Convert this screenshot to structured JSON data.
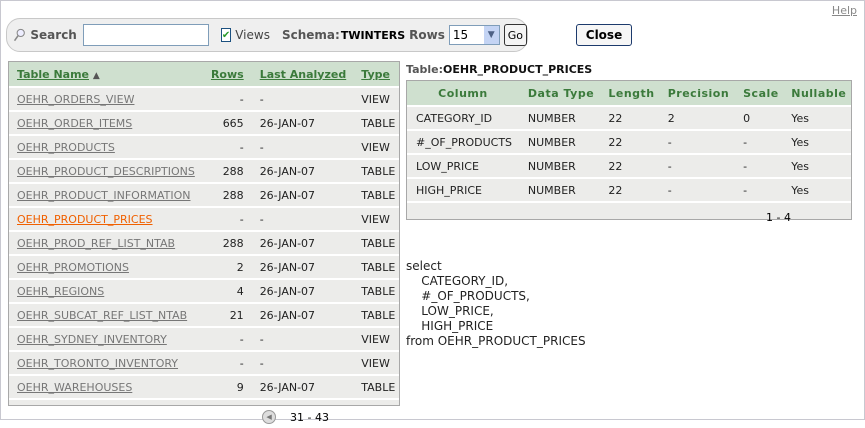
{
  "help_label": "Help",
  "toolbar": {
    "search_label": "Search",
    "search_value": "",
    "views_label": "Views",
    "views_checked": true,
    "schema_label": "Schema:",
    "schema_value": "TWINTERS",
    "rows_label": "Rows",
    "rows_value": "15",
    "go_label": "Go"
  },
  "close_label": "Close",
  "tables": {
    "headers": {
      "name": "Table Name",
      "sort_indicator": "▲",
      "rows": "Rows",
      "last_analyzed": "Last Analyzed",
      "type": "Type"
    },
    "rows": [
      {
        "name": "OEHR_ORDERS_VIEW",
        "rows": "-",
        "last": "-",
        "type": "VIEW"
      },
      {
        "name": "OEHR_ORDER_ITEMS",
        "rows": "665",
        "last": "26-JAN-07",
        "type": "TABLE"
      },
      {
        "name": "OEHR_PRODUCTS",
        "rows": "-",
        "last": "-",
        "type": "VIEW"
      },
      {
        "name": "OEHR_PRODUCT_DESCRIPTIONS",
        "rows": "288",
        "last": "26-JAN-07",
        "type": "TABLE"
      },
      {
        "name": "OEHR_PRODUCT_INFORMATION",
        "rows": "288",
        "last": "26-JAN-07",
        "type": "TABLE"
      },
      {
        "name": "OEHR_PRODUCT_PRICES",
        "rows": "-",
        "last": "-",
        "type": "VIEW"
      },
      {
        "name": "OEHR_PROD_REF_LIST_NTAB",
        "rows": "288",
        "last": "26-JAN-07",
        "type": "TABLE"
      },
      {
        "name": "OEHR_PROMOTIONS",
        "rows": "2",
        "last": "26-JAN-07",
        "type": "TABLE"
      },
      {
        "name": "OEHR_REGIONS",
        "rows": "4",
        "last": "26-JAN-07",
        "type": "TABLE"
      },
      {
        "name": "OEHR_SUBCAT_REF_LIST_NTAB",
        "rows": "21",
        "last": "26-JAN-07",
        "type": "TABLE"
      },
      {
        "name": "OEHR_SYDNEY_INVENTORY",
        "rows": "-",
        "last": "-",
        "type": "VIEW"
      },
      {
        "name": "OEHR_TORONTO_INVENTORY",
        "rows": "-",
        "last": "-",
        "type": "VIEW"
      },
      {
        "name": "OEHR_WAREHOUSES",
        "rows": "9",
        "last": "26-JAN-07",
        "type": "TABLE"
      }
    ],
    "pagination": "31 - 43"
  },
  "detail": {
    "label": "Table:",
    "table_name": "OEHR_PRODUCT_PRICES",
    "headers": [
      "Column",
      "Data Type",
      "Length",
      "Precision",
      "Scale",
      "Nullable"
    ],
    "rows": [
      [
        "CATEGORY_ID",
        "NUMBER",
        "22",
        "2",
        "0",
        "Yes"
      ],
      [
        "#_OF_PRODUCTS",
        "NUMBER",
        "22",
        "-",
        "-",
        "Yes"
      ],
      [
        "LOW_PRICE",
        "NUMBER",
        "22",
        "-",
        "-",
        "Yes"
      ],
      [
        "HIGH_PRICE",
        "NUMBER",
        "22",
        "-",
        "-",
        "Yes"
      ]
    ],
    "pagination": "1 - 4"
  },
  "sql": "select\n    CATEGORY_ID,\n    #_OF_PRODUCTS,\n    LOW_PRICE,\n    HIGH_PRICE\nfrom OEHR_PRODUCT_PRICES",
  "colors": {
    "header_bg": "#cfe0cf",
    "header_text": "#3b7a3b",
    "hover_link": "#f06000"
  }
}
